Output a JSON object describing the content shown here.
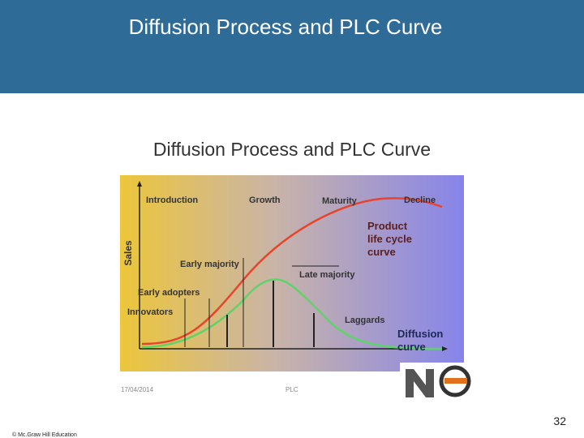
{
  "header": {
    "title": "Diffusion Process and PLC Curve"
  },
  "figure": {
    "title": "Diffusion Process and PLC Curve",
    "axis_label": "Sales",
    "stages": [
      "Introduction",
      "Growth",
      "Maturity",
      "Decline"
    ],
    "adopters": [
      "Innovators",
      "Early adopters",
      "Early majority",
      "Late majority",
      "Laggards"
    ],
    "plc_curve_label": [
      "Product",
      "life cycle",
      "curve"
    ],
    "diffusion_curve_label": [
      "Diffusion",
      "curve"
    ],
    "date": "17/04/2014",
    "caption": "PLC"
  },
  "footer": {
    "page_number": "32",
    "copyright": "© Mc.Graw Hill Education"
  }
}
